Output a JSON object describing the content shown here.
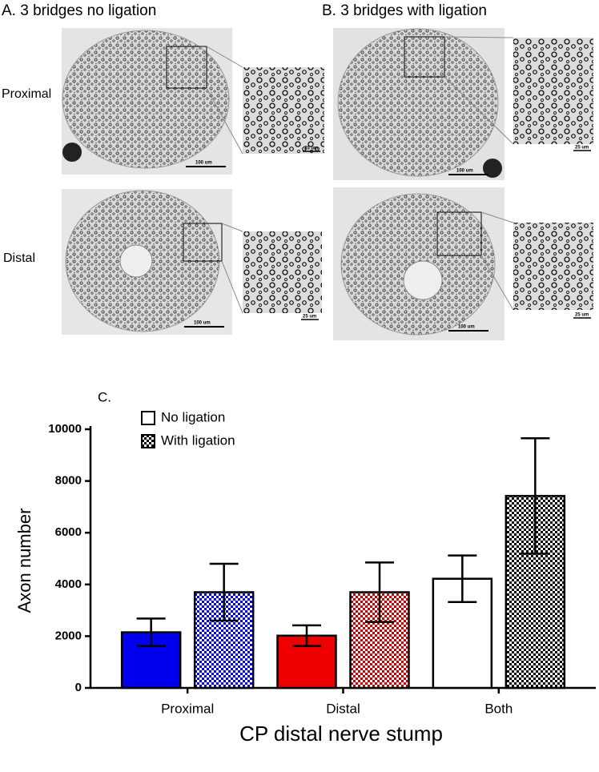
{
  "micrographs": {
    "titles": [
      "A. 3 bridges no ligation",
      "B. 3 bridges with ligation"
    ],
    "rows": [
      "Proximal",
      "Distal"
    ],
    "scale_bars": [
      {
        "main": "100 um",
        "inset": "25 um"
      },
      {
        "main": "100 um",
        "inset": "25 um"
      },
      {
        "main": "100 um",
        "inset": "25 um"
      },
      {
        "main": "100 um",
        "inset": "25 um"
      }
    ]
  },
  "chart_data": {
    "type": "bar",
    "panel_label": "C.",
    "categories": [
      "Proximal",
      "Distal",
      "Both"
    ],
    "series": [
      {
        "name": "No ligation",
        "color": "#ffffff",
        "bar_colors": [
          "#0000ee",
          "#ee0000",
          "#ffffff"
        ],
        "pattern": "solid",
        "values": [
          2150,
          2020,
          4220
        ],
        "errors": [
          530,
          400,
          900
        ]
      },
      {
        "name": "With ligation",
        "color": "#000000",
        "bar_colors": [
          "#0000ee",
          "#cc0000",
          "#000000"
        ],
        "pattern": "checker",
        "values": [
          3700,
          3700,
          7420
        ],
        "errors": [
          1100,
          1150,
          2230
        ]
      }
    ],
    "ylim": [
      0,
      10000
    ],
    "yticks": [
      0,
      2000,
      4000,
      6000,
      8000,
      10000
    ],
    "ylabel": "Axon number",
    "xlabel": "CP distal nerve stump",
    "legend": "upper-left"
  }
}
